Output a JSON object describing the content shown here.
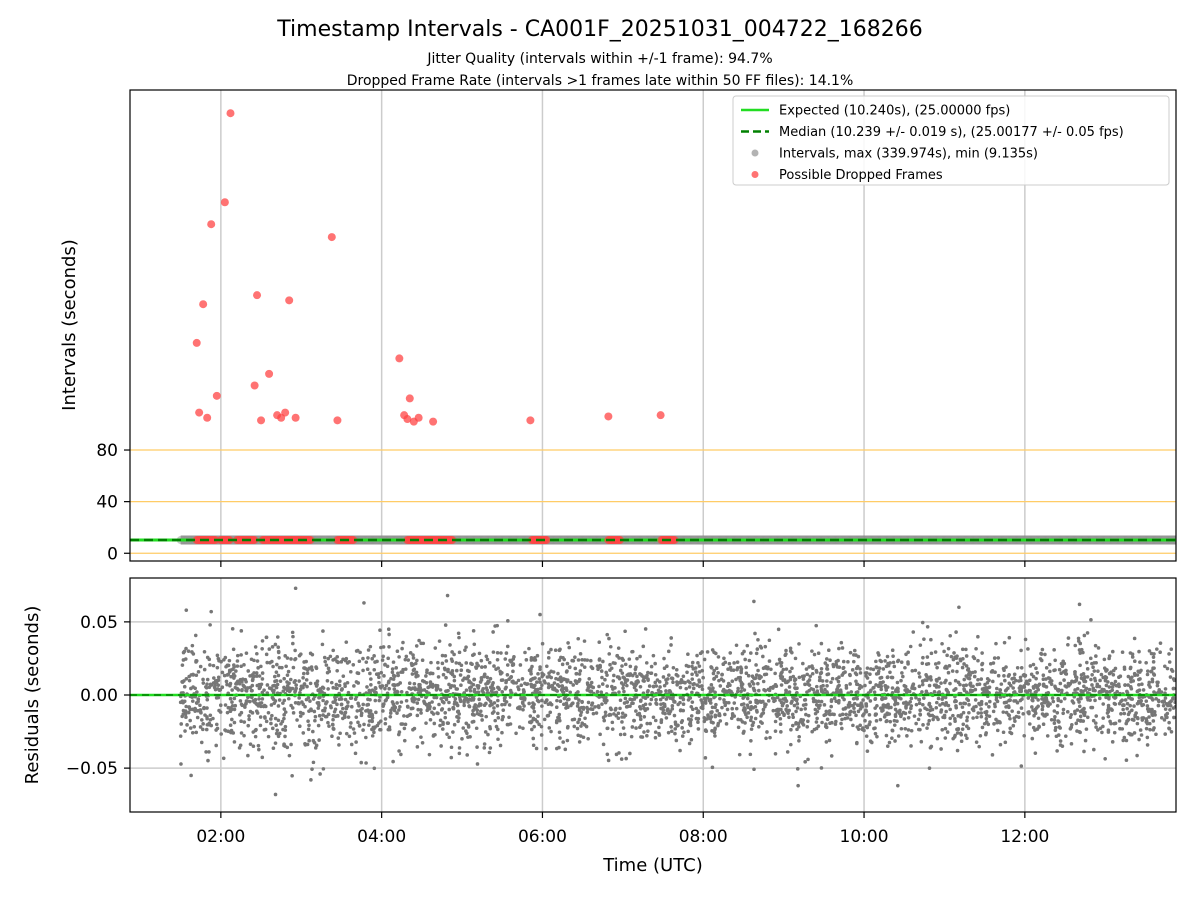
{
  "chart_data": {
    "title": "Timestamp Intervals - CA001F_20251031_004722_168266",
    "subtitle_lines": [
      "Jitter Quality (intervals within +/-1 frame): 94.7%",
      "Dropped Frame Rate (intervals >1 frames late within 50 FF files): 14.1%"
    ],
    "xlabel": "Time (UTC)",
    "x_tick_labels": [
      "02:00",
      "04:00",
      "06:00",
      "08:00",
      "10:00",
      "12:00"
    ],
    "x_tick_hours": [
      2,
      4,
      6,
      8,
      10,
      12
    ],
    "xlim_hours": [
      0.87,
      13.88
    ],
    "top_panel": {
      "type": "scatter",
      "ylabel": "Intervals (seconds)",
      "y_ticks": [
        0,
        40,
        80
      ],
      "ylim": [
        -6,
        359
      ],
      "reference_lines": [
        0,
        40,
        80
      ],
      "reference_color": "#ffcc66",
      "expected_interval": 10.24,
      "median_interval": 10.239,
      "interval_range_hours": [
        1.5,
        13.88
      ],
      "legend": {
        "position": "upper right",
        "entries": [
          {
            "label": "Expected (10.240s), (25.00000 fps)",
            "style": "line",
            "color": "#22dd22"
          },
          {
            "label": "Median (10.239 +/- 0.019 s), (25.00177 +/- 0.05 fps)",
            "style": "dashed",
            "color": "#008000"
          },
          {
            "label": "Intervals, max (339.974s), min (9.135s)",
            "style": "point",
            "color": "#999999"
          },
          {
            "label": "Possible Dropped Frames",
            "style": "point",
            "color": "#ff4444"
          }
        ]
      },
      "dropped_frames": {
        "name": "Possible Dropped Frames",
        "color": "#ff4444",
        "points": [
          {
            "t": 2.12,
            "v": 341
          },
          {
            "t": 2.05,
            "v": 272
          },
          {
            "t": 1.88,
            "v": 255
          },
          {
            "t": 3.38,
            "v": 245
          },
          {
            "t": 1.78,
            "v": 193
          },
          {
            "t": 2.45,
            "v": 200
          },
          {
            "t": 2.85,
            "v": 196
          },
          {
            "t": 1.7,
            "v": 163
          },
          {
            "t": 4.22,
            "v": 151
          },
          {
            "t": 2.6,
            "v": 139
          },
          {
            "t": 2.42,
            "v": 130
          },
          {
            "t": 1.95,
            "v": 122
          },
          {
            "t": 4.35,
            "v": 120
          },
          {
            "t": 1.73,
            "v": 109
          },
          {
            "t": 1.83,
            "v": 105
          },
          {
            "t": 2.5,
            "v": 103
          },
          {
            "t": 2.7,
            "v": 107
          },
          {
            "t": 2.75,
            "v": 105
          },
          {
            "t": 2.8,
            "v": 109
          },
          {
            "t": 2.93,
            "v": 105
          },
          {
            "t": 3.45,
            "v": 103
          },
          {
            "t": 4.28,
            "v": 107
          },
          {
            "t": 4.32,
            "v": 104
          },
          {
            "t": 4.4,
            "v": 102
          },
          {
            "t": 4.46,
            "v": 105
          },
          {
            "t": 4.64,
            "v": 102
          },
          {
            "t": 5.85,
            "v": 103
          },
          {
            "t": 6.82,
            "v": 106
          },
          {
            "t": 7.47,
            "v": 107
          }
        ],
        "near_baseline_clusters": [
          [
            1.7,
            1.95
          ],
          [
            2.0,
            2.12
          ],
          [
            2.2,
            2.42
          ],
          [
            2.52,
            3.12
          ],
          [
            3.45,
            3.65
          ],
          [
            4.32,
            4.88
          ],
          [
            5.87,
            6.05
          ],
          [
            6.82,
            6.98
          ],
          [
            7.48,
            7.65
          ]
        ],
        "near_baseline_value": 10.24
      }
    },
    "bottom_panel": {
      "type": "scatter",
      "ylabel": "Residuals (seconds)",
      "y_ticks": [
        -0.05,
        0.0,
        0.05
      ],
      "y_tick_labels": [
        "−0.05",
        "0.00",
        "0.05"
      ],
      "ylim": [
        -0.08,
        0.08
      ],
      "zero_line_color": "#22dd22",
      "residual_color": "#777777",
      "residual_range_hours": [
        1.5,
        13.88
      ],
      "residual_typical_spread": 0.03,
      "residual_extremes": [
        {
          "t": 2.93,
          "v": 0.073
        },
        {
          "t": 4.82,
          "v": 0.068
        },
        {
          "t": 8.63,
          "v": 0.064
        },
        {
          "t": 1.57,
          "v": 0.058
        },
        {
          "t": 5.97,
          "v": 0.055
        },
        {
          "t": 3.78,
          "v": 0.063
        },
        {
          "t": 2.68,
          "v": -0.068
        },
        {
          "t": 1.63,
          "v": -0.055
        },
        {
          "t": 9.18,
          "v": -0.062
        },
        {
          "t": 10.42,
          "v": -0.062
        },
        {
          "t": 3.12,
          "v": -0.058
        },
        {
          "t": 12.68,
          "v": 0.062
        },
        {
          "t": 11.18,
          "v": 0.06
        }
      ]
    }
  }
}
